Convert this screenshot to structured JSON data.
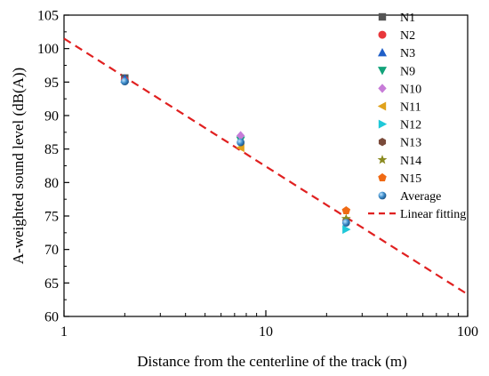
{
  "chart_data": {
    "type": "scatter",
    "xscale": "log",
    "xlim": [
      1,
      100
    ],
    "ylim": [
      60,
      105
    ],
    "xlabel": "Distance from the centerline of the track (m)",
    "ylabel": "A-weighted sound level (dB(A))",
    "xticks": [
      1,
      10,
      100
    ],
    "xtick_labels": [
      "1",
      "10",
      "100"
    ],
    "yticks": [
      60,
      65,
      70,
      75,
      80,
      85,
      90,
      95,
      100,
      105
    ],
    "ytick_labels": [
      "60",
      "65",
      "70",
      "75",
      "80",
      "85",
      "90",
      "95",
      "100",
      "105"
    ],
    "grid": false,
    "legend_position": "top-right",
    "series": [
      {
        "name": "N1",
        "marker": "square",
        "color": "#555555",
        "points": [
          [
            2,
            95.6
          ]
        ]
      },
      {
        "name": "N2",
        "marker": "circle",
        "color": "#e8373b",
        "points": [
          [
            2,
            95.3
          ]
        ]
      },
      {
        "name": "N3",
        "marker": "triangle-up",
        "color": "#1f5fc8",
        "points": [
          [
            2,
            95.5
          ]
        ]
      },
      {
        "name": "N9",
        "marker": "triangle-down",
        "color": "#12a37a",
        "points": [
          [
            7.5,
            86.3
          ]
        ]
      },
      {
        "name": "N10",
        "marker": "diamond",
        "color": "#c77cd8",
        "points": [
          [
            7.5,
            87.0
          ]
        ]
      },
      {
        "name": "N11",
        "marker": "triangle-left",
        "color": "#e0a21c",
        "points": [
          [
            7.5,
            85.2
          ]
        ]
      },
      {
        "name": "N12",
        "marker": "triangle-right",
        "color": "#1fc8d8",
        "points": [
          [
            25,
            73.0
          ]
        ]
      },
      {
        "name": "N13",
        "marker": "hexagon",
        "color": "#7a4a3a",
        "points": [
          [
            25,
            74.2
          ]
        ]
      },
      {
        "name": "N14",
        "marker": "star",
        "color": "#8a8a20",
        "points": [
          [
            25,
            74.6
          ]
        ]
      },
      {
        "name": "N15",
        "marker": "pentagon",
        "color": "#f06a14",
        "points": [
          [
            25,
            75.8
          ]
        ]
      },
      {
        "name": "Average",
        "marker": "sphere",
        "color": "#3a8ac8",
        "points": [
          [
            2,
            95.1
          ],
          [
            7.5,
            86.0
          ],
          [
            25,
            74.0
          ]
        ]
      }
    ],
    "fit": {
      "name": "Linear fitting",
      "color": "#e02020",
      "style": "dashed",
      "points": [
        [
          1,
          101.5
        ],
        [
          100,
          63.3
        ]
      ]
    }
  }
}
